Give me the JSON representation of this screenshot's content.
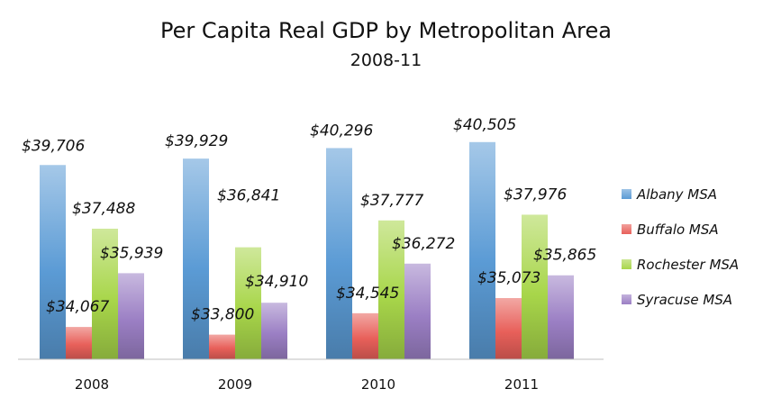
{
  "chart_data": {
    "type": "bar",
    "title": "Per Capita Real GDP by Metropolitan Area",
    "subtitle": "2008-11",
    "xlabel": "",
    "ylabel": "",
    "categories": [
      "2008",
      "2009",
      "2010",
      "2011"
    ],
    "series": [
      {
        "name": "Albany MSA",
        "values": [
          39706,
          39929,
          40296,
          40505
        ],
        "labels": [
          "$39,706",
          "$39,929",
          "$40,296",
          "$40,505"
        ],
        "color": "#5b9bd5"
      },
      {
        "name": "Buffalo MSA",
        "values": [
          34067,
          33800,
          34545,
          35073
        ],
        "labels": [
          "$34,067",
          "$33,800",
          "$34,545",
          "$35,073"
        ],
        "color": "#e8605a"
      },
      {
        "name": "Rochester MSA",
        "values": [
          37488,
          36841,
          37777,
          37976
        ],
        "labels": [
          "$37,488",
          "$36,841",
          "$37,777",
          "$37,976"
        ],
        "color": "#a8d64a"
      },
      {
        "name": "Syracuse MSA",
        "values": [
          35939,
          34910,
          36272,
          35865
        ],
        "labels": [
          "$35,939",
          "$34,910",
          "$36,272",
          "$35,865"
        ],
        "color": "#9b7fc4"
      }
    ],
    "ylim": [
      32000,
      41000
    ],
    "grid": false,
    "legend_position": "right"
  }
}
